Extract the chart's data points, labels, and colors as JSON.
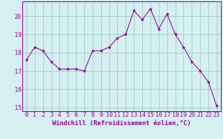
{
  "x": [
    0,
    1,
    2,
    3,
    4,
    5,
    6,
    7,
    8,
    9,
    10,
    11,
    12,
    13,
    14,
    15,
    16,
    17,
    18,
    19,
    20,
    21,
    22,
    23
  ],
  "y": [
    17.6,
    18.3,
    18.1,
    17.5,
    17.1,
    17.1,
    17.1,
    17.0,
    18.1,
    18.1,
    18.3,
    18.8,
    19.0,
    20.3,
    19.8,
    20.4,
    19.3,
    20.1,
    19.0,
    18.3,
    17.5,
    17.0,
    16.4,
    15.1
  ],
  "line_color": "#990099",
  "marker": "*",
  "marker_size": 3,
  "bg_color": "#d4f0f0",
  "grid_color": "#aacccc",
  "xlabel": "Windchill (Refroidissement éolien,°C)",
  "xlim": [
    -0.5,
    23.5
  ],
  "ylim": [
    14.8,
    20.8
  ],
  "yticks": [
    15,
    16,
    17,
    18,
    19,
    20
  ],
  "xticks": [
    0,
    1,
    2,
    3,
    4,
    5,
    6,
    7,
    8,
    9,
    10,
    11,
    12,
    13,
    14,
    15,
    16,
    17,
    18,
    19,
    20,
    21,
    22,
    23
  ],
  "xlabel_fontsize": 6.5,
  "tick_fontsize": 6.0
}
